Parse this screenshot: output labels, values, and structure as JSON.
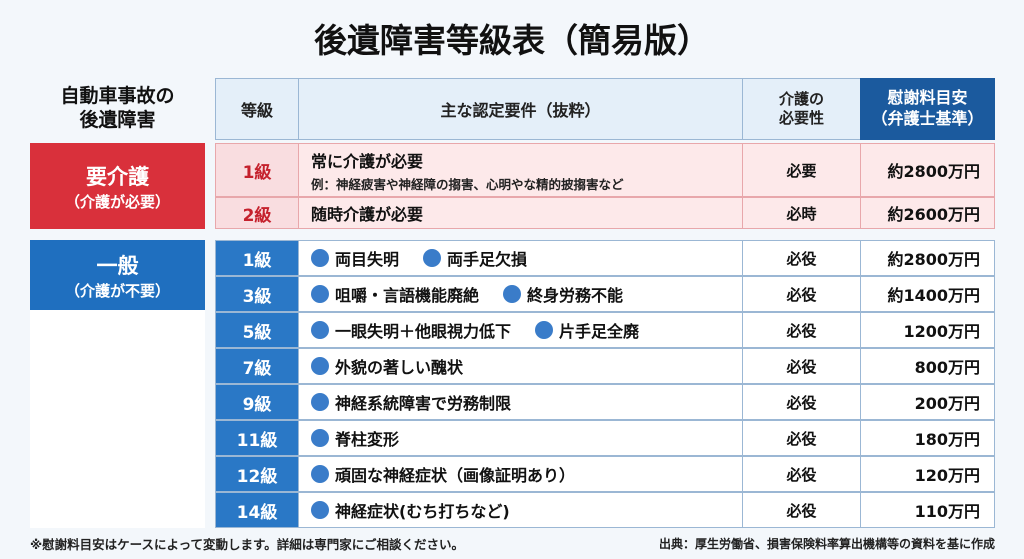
{
  "title": "後遺障害等級表（簡易版）",
  "header": {
    "group": [
      "自動車事故の",
      "後遺障害"
    ],
    "grade": "等級",
    "requirements": "主な認定要件（抜粋）",
    "care": [
      "介護の",
      "必要性"
    ],
    "amount": [
      "慰謝料目安",
      "（弁護士基準）"
    ]
  },
  "groups": [
    {
      "label": "要介護",
      "sublabel": "（介護が必要）",
      "rows": [
        {
          "grade": "1級",
          "items": [
            "常に介護が必要"
          ],
          "note": "例：神経疲害や神経障の搊害、心明やな精的披搊害など",
          "care": "必要",
          "amount": "約2800万円"
        },
        {
          "grade": "2級",
          "items": [
            "随時介護が必要"
          ],
          "care": "必時",
          "amount": "約2600万円"
        }
      ]
    },
    {
      "label": "一般",
      "sublabel": "（介護が不要）",
      "rows": [
        {
          "grade": "1級",
          "items": [
            "両目失明",
            "両手足欠損"
          ],
          "care": "必役",
          "amount": "約2800万円"
        },
        {
          "grade": "3級",
          "items": [
            "咀嚼・言語機能廃絶",
            "終身労務不能"
          ],
          "care": "必役",
          "amount": "約1400万円"
        },
        {
          "grade": "5級",
          "items": [
            "一眼失明＋他眼視力低下",
            "片手足全廃"
          ],
          "care": "必役",
          "amount": "1200万円"
        },
        {
          "grade": "7級",
          "items": [
            "外貌の著しい醜状"
          ],
          "care": "必役",
          "amount": "800万円"
        },
        {
          "grade": "9級",
          "items": [
            "神経系統障害で労務制限"
          ],
          "care": "必役",
          "amount": "200万円"
        },
        {
          "grade": "11級",
          "items": [
            "脊柱変形"
          ],
          "care": "必役",
          "amount": "180万円"
        },
        {
          "grade": "12級",
          "items": [
            "頑固な神経症状（画像証明あり）"
          ],
          "care": "必役",
          "amount": "120万円"
        },
        {
          "grade": "14級",
          "items": [
            "神経症状(むち打ちなど)"
          ],
          "care": "必役",
          "amount": "110万円"
        }
      ]
    }
  ],
  "footer": {
    "note": "※慰謝料目安はケースによって変動します。詳細は専門家にご相談ください。",
    "source": "出典：厚生労働省、損害保険料率算出機構等の資料を基に作成"
  }
}
